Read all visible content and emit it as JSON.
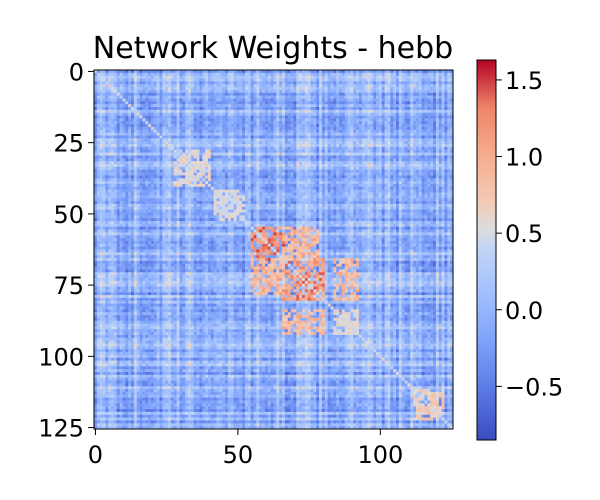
{
  "chart_data": {
    "type": "heatmap",
    "title": "Network Weights - hebb",
    "xlabel": "",
    "ylabel": "",
    "n_rows": 126,
    "n_cols": 126,
    "xlim": [
      0,
      125
    ],
    "ylim": [
      125,
      0
    ],
    "x_ticks": [
      0,
      50,
      100
    ],
    "y_ticks": [
      0,
      25,
      50,
      75,
      100,
      125
    ],
    "colormap": "coolwarm",
    "vmin": -0.85,
    "vmax": 1.63,
    "colorbar_ticks": [
      1.5,
      1.0,
      0.5,
      0.0,
      -0.5
    ],
    "colorbar_tick_labels": [
      "1.5",
      "1.0",
      "0.5",
      "0.0",
      "−0.5"
    ],
    "matrix_note": "symmetric weight matrix, mostly near 0 (light blue) with bright red/orange blocks around rows/cols 55-90",
    "hot_blocks": [
      {
        "rows": [
          55,
          66
        ],
        "cols": [
          55,
          66
        ],
        "level": 1.35
      },
      {
        "rows": [
          66,
          80
        ],
        "cols": [
          66,
          80
        ],
        "level": 1.2
      },
      {
        "rows": [
          55,
          66
        ],
        "cols": [
          66,
          78
        ],
        "level": 0.95
      },
      {
        "rows": [
          66,
          80
        ],
        "cols": [
          84,
          92
        ],
        "level": 0.9
      },
      {
        "rows": [
          28,
          40
        ],
        "cols": [
          28,
          40
        ],
        "level": 0.6
      },
      {
        "rows": [
          42,
          52
        ],
        "cols": [
          42,
          52
        ],
        "level": 0.55
      },
      {
        "rows": [
          84,
          92
        ],
        "cols": [
          84,
          92
        ],
        "level": 0.6
      },
      {
        "rows": [
          112,
          122
        ],
        "cols": [
          112,
          122
        ],
        "level": 0.7
      }
    ]
  }
}
